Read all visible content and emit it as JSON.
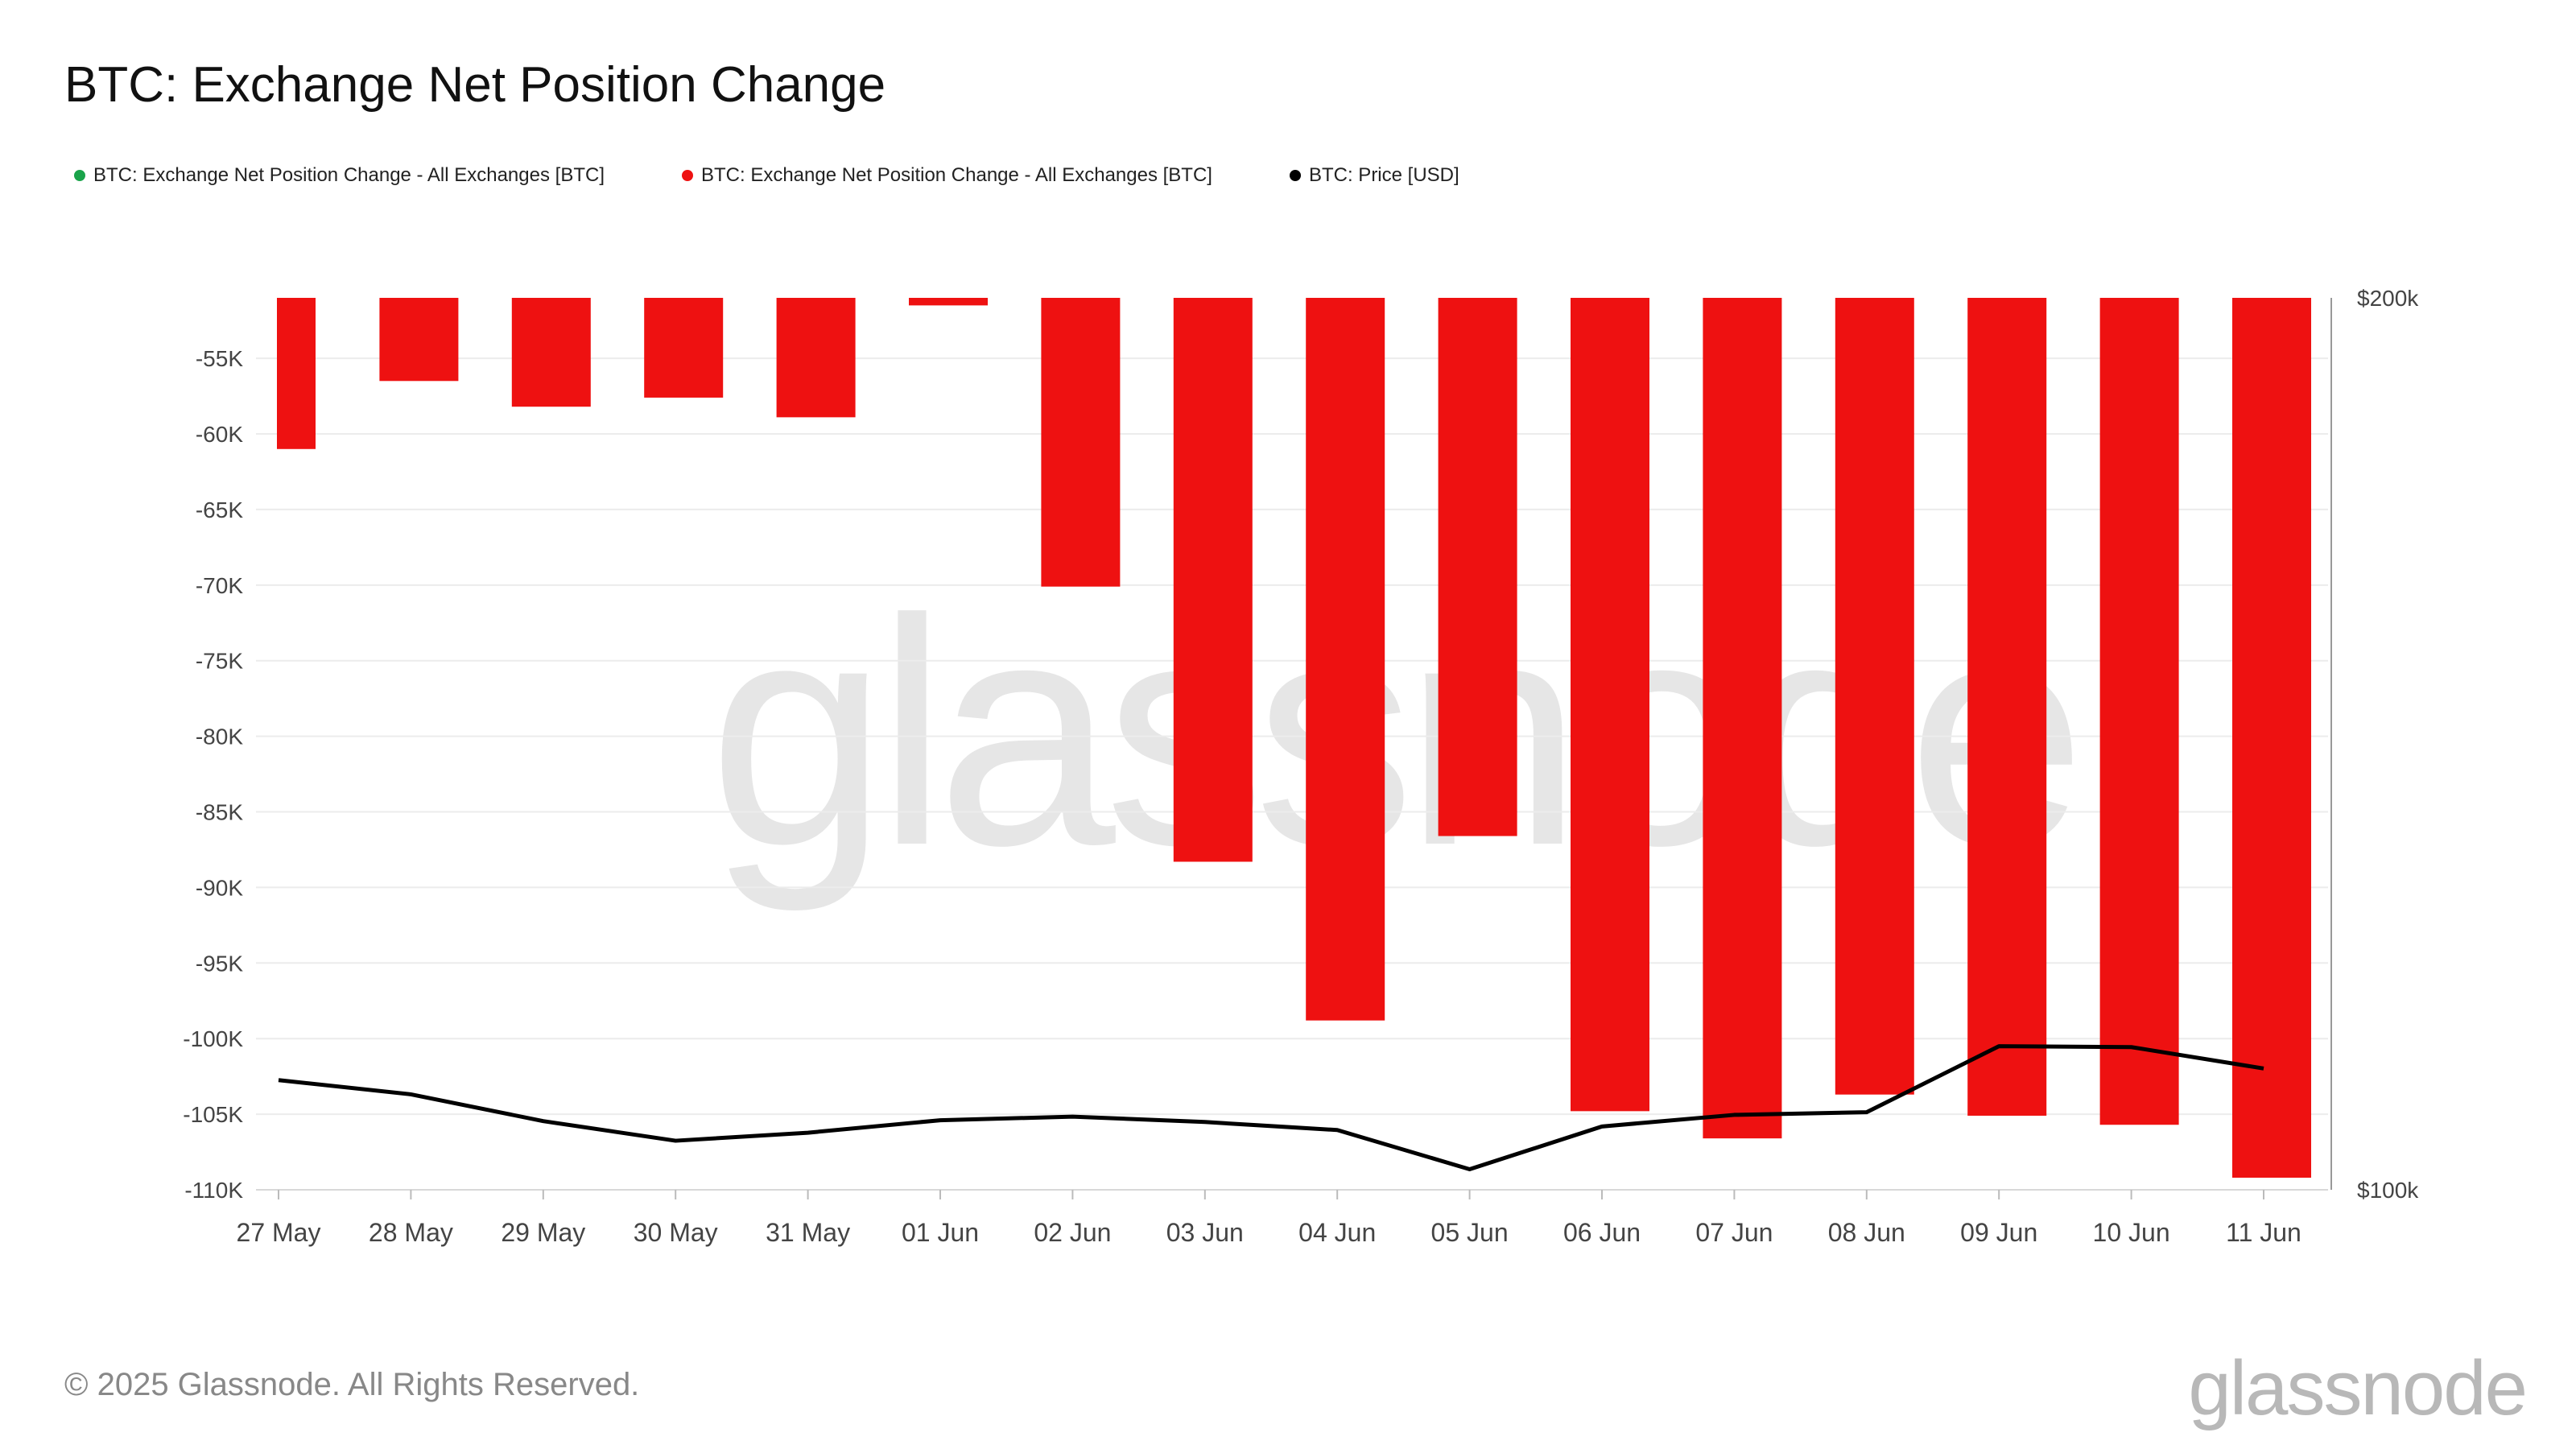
{
  "header": {
    "title": "BTC: Exchange Net Position Change"
  },
  "legend": [
    {
      "label": "BTC: Exchange Net Position Change - All Exchanges [BTC]",
      "color": "#1aa34a"
    },
    {
      "label": "BTC: Exchange Net Position Change - All Exchanges [BTC]",
      "color": "#ee1111"
    },
    {
      "label": "BTC: Price [USD]",
      "color": "#000000"
    }
  ],
  "watermark": "glassnode",
  "footer": {
    "copyright": "© 2025 Glassnode. All Rights Reserved.",
    "brand": "glassnode"
  },
  "chart_data": {
    "type": "bar",
    "categories": [
      "27 May",
      "28 May",
      "29 May",
      "30 May",
      "31 May",
      "01 Jun",
      "02 Jun",
      "03 Jun",
      "04 Jun",
      "05 Jun",
      "06 Jun",
      "07 Jun",
      "08 Jun",
      "09 Jun",
      "10 Jun",
      "11 Jun"
    ],
    "ylim": [
      -110000,
      -51000
    ],
    "yticks": [
      -55000,
      -60000,
      -65000,
      -70000,
      -75000,
      -80000,
      -85000,
      -90000,
      -95000,
      -100000,
      -105000,
      -110000
    ],
    "ytick_labels": [
      "-55K",
      "-60K",
      "-65K",
      "-70K",
      "-75K",
      "-80K",
      "-85K",
      "-90K",
      "-95K",
      "-100K",
      "-105K",
      "-110K"
    ],
    "y2lim": [
      100000,
      200000
    ],
    "y2tick_labels": [
      "$200k",
      "$100k"
    ],
    "grid": true,
    "legend_position": "top-left",
    "series": [
      {
        "name": "BTC: Exchange Net Position Change - All Exchanges [BTC]",
        "type": "bar",
        "color": "#ee1111",
        "axis": "left",
        "values": [
          -61000,
          -56500,
          -58200,
          -57600,
          -58900,
          -51500,
          -70100,
          -88300,
          -98800,
          -86600,
          -104800,
          -106600,
          -103700,
          -105100,
          -105700,
          -109200
        ]
      },
      {
        "name": "BTC: Price [USD]",
        "type": "line",
        "color": "#000000",
        "axis": "right",
        "values": [
          112300,
          110700,
          107700,
          105500,
          106400,
          107800,
          108200,
          107600,
          106700,
          102300,
          107100,
          108400,
          108700,
          116100,
          116000,
          113600
        ]
      }
    ]
  }
}
